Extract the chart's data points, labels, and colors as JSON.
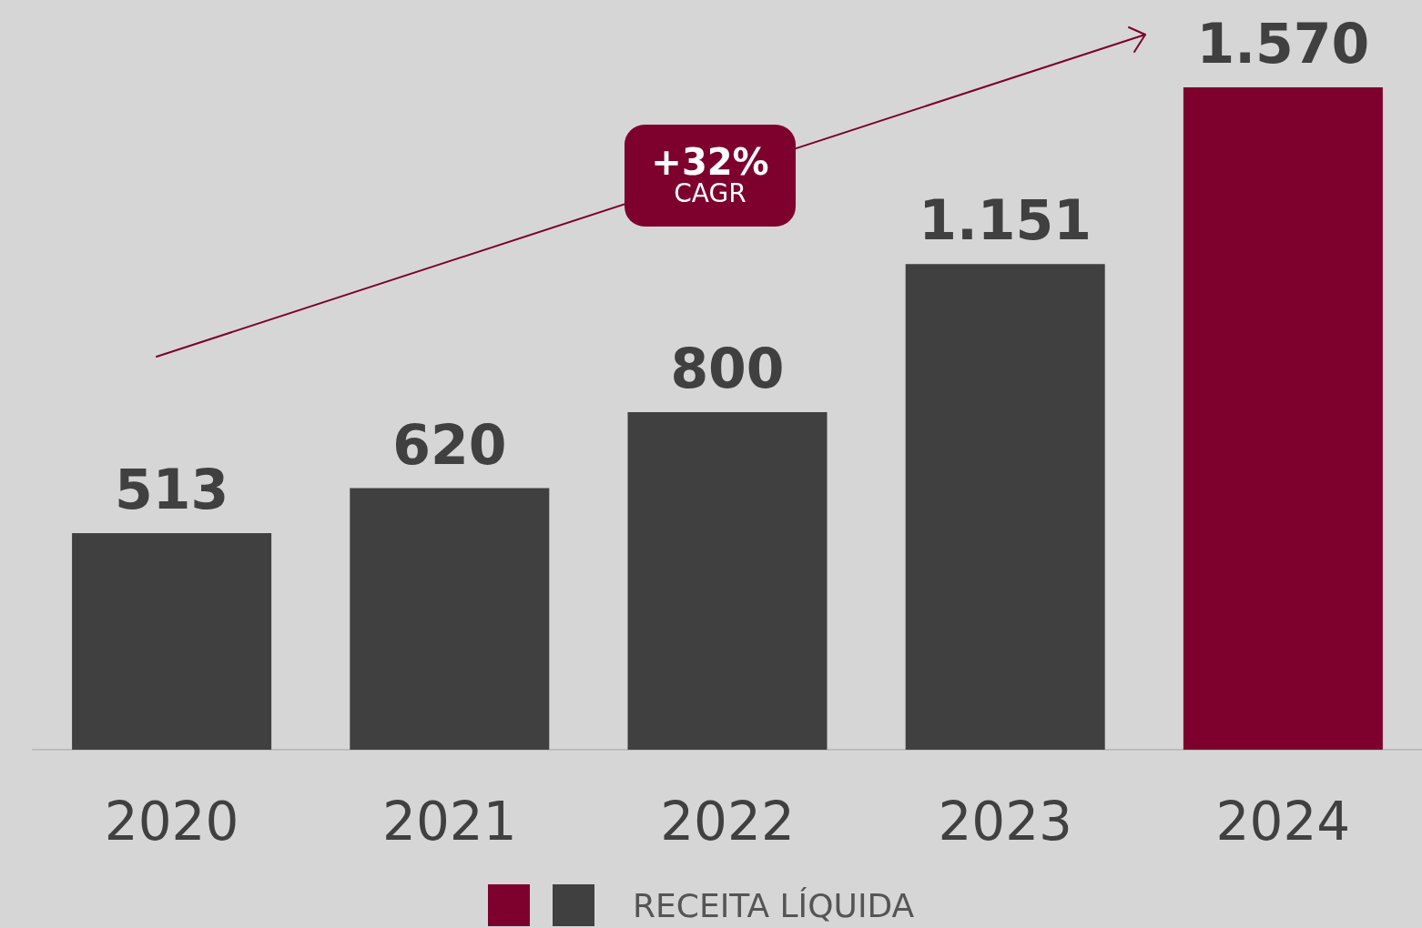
{
  "chart_data": {
    "type": "bar",
    "categories": [
      "2020",
      "2021",
      "2022",
      "2023",
      "2024"
    ],
    "series": [
      {
        "name": "RECEITA LÍQUIDA",
        "values": [
          513,
          620,
          800,
          1151,
          1570
        ],
        "colors": [
          "#404040",
          "#404040",
          "#404040",
          "#404040",
          "#7d002d"
        ],
        "value_labels": [
          "513",
          "620",
          "800",
          "1.151",
          "1.570"
        ]
      }
    ],
    "annotations": [
      "+32%",
      "CAGR"
    ],
    "legend": "bottom"
  }
}
